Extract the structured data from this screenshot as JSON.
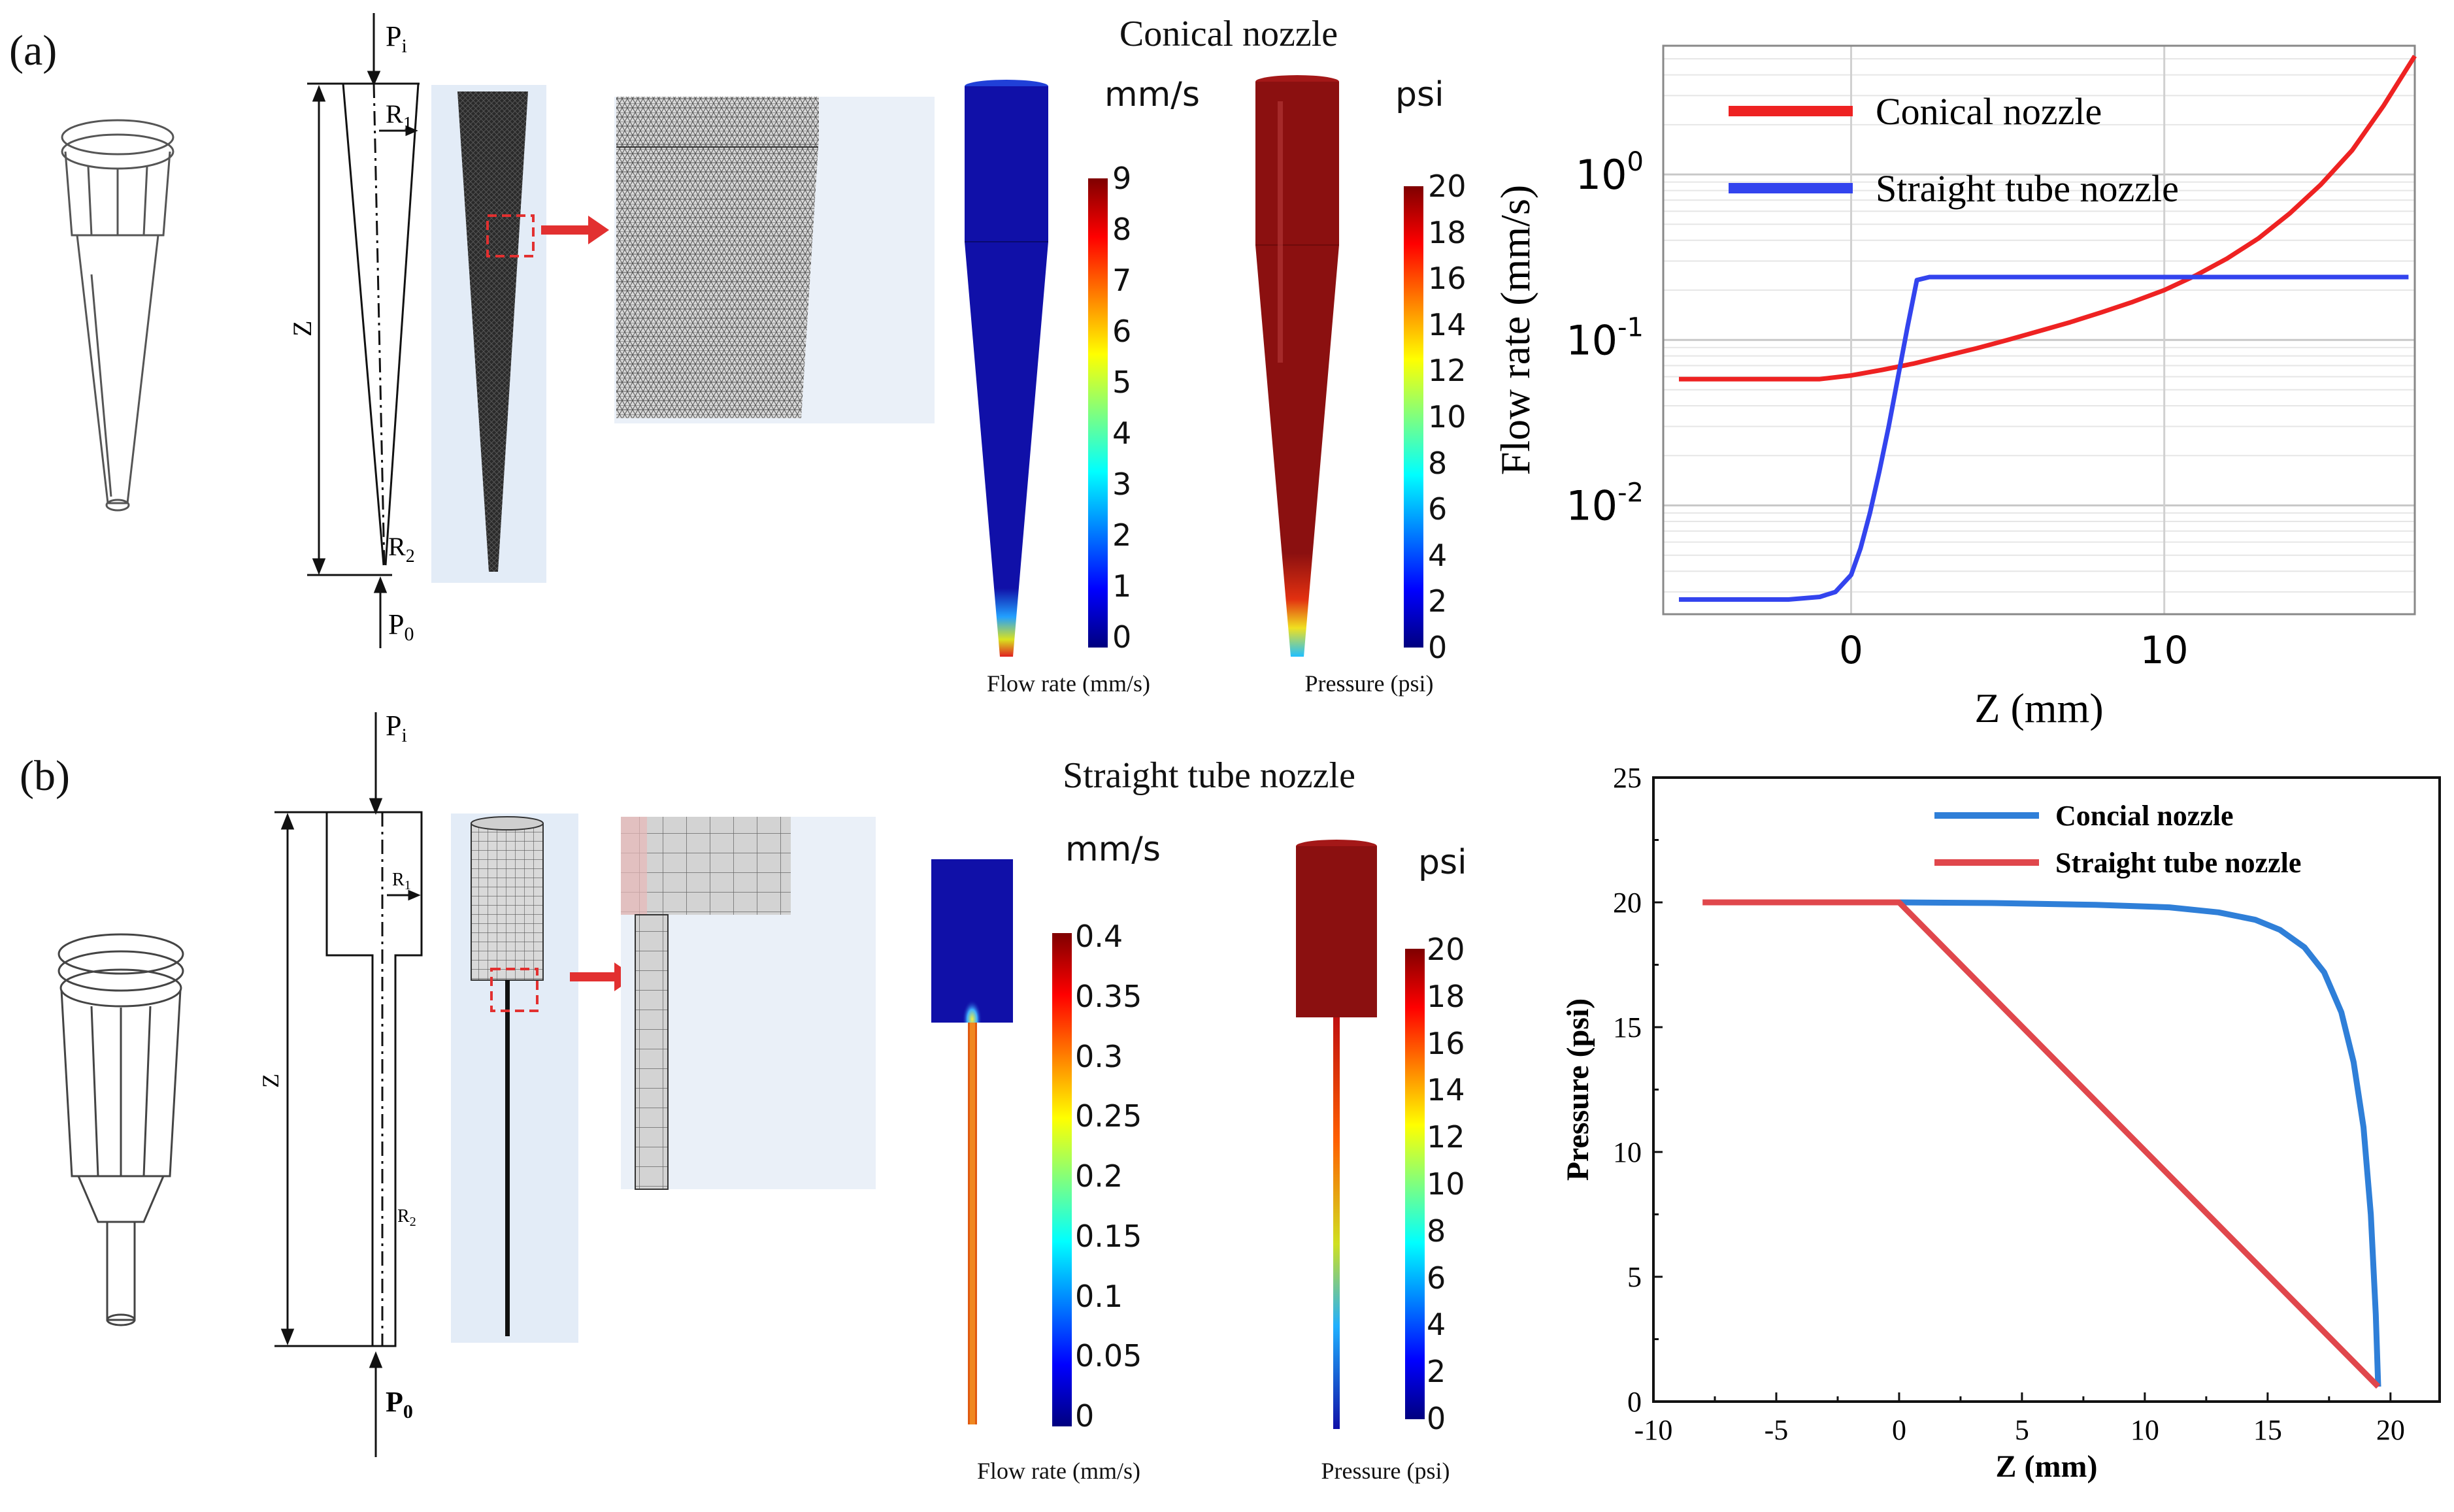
{
  "panel_a": {
    "label": "(a)",
    "title": "Conical nozzle",
    "schematic": {
      "inlet": "P",
      "inlet_sub": "i",
      "outlet": "P",
      "outlet_sub": "0",
      "r1": "R",
      "r1_sub": "1",
      "r2": "R",
      "r2_sub": "2",
      "z": "Z"
    },
    "flow_colorbar": {
      "unit": "mm/s",
      "ticks": [
        "9",
        "8",
        "7",
        "6",
        "5",
        "4",
        "3",
        "2",
        "1",
        "0"
      ],
      "caption": "Flow rate (mm/s)"
    },
    "pressure_colorbar": {
      "unit": "psi",
      "ticks": [
        "20",
        "18",
        "16",
        "14",
        "12",
        "10",
        "8",
        "6",
        "4",
        "2",
        "0"
      ],
      "caption": "Pressure (psi)"
    }
  },
  "panel_b": {
    "label": "(b)",
    "title": "Straight tube nozzle",
    "schematic": {
      "inlet": "P",
      "inlet_sub": "i",
      "outlet": "P",
      "outlet_sub": "0",
      "r1": "R",
      "r1_sub": "1",
      "r2": "R",
      "r2_sub": "2",
      "z": "Z"
    },
    "flow_colorbar": {
      "unit": "mm/s",
      "ticks": [
        "0.4",
        "0.35",
        "0.3",
        "0.25",
        "0.2",
        "0.15",
        "0.1",
        "0.05",
        "0"
      ],
      "caption": "Flow rate (mm/s)"
    },
    "pressure_colorbar": {
      "unit": "psi",
      "ticks": [
        "20",
        "18",
        "16",
        "14",
        "12",
        "10",
        "8",
        "6",
        "4",
        "2",
        "0"
      ],
      "caption": "Pressure (psi)"
    }
  },
  "colors": {
    "conical": "#ee2222",
    "straight": "#3344ee",
    "conical_b": "#2f7fd8",
    "straight_b": "#e0474c",
    "sim_blue": "#1010a8",
    "sim_red": "#8b1010"
  },
  "chart_data": [
    {
      "type": "line",
      "title": "",
      "xlabel": "Z (mm)",
      "ylabel": "Flow rate (mm/s)",
      "yscale": "log",
      "xlim": [
        -6,
        18
      ],
      "ylim": [
        0.0022,
        6
      ],
      "x_ticks": [
        0,
        10
      ],
      "x_tick_labels": [
        "0",
        "10"
      ],
      "y_ticks": [
        0.01,
        0.1,
        1
      ],
      "y_tick_labels": [
        [
          "10",
          "-2"
        ],
        [
          "10",
          "-1"
        ],
        [
          "10",
          "0"
        ]
      ],
      "grid": true,
      "legend": "top-left",
      "series": [
        {
          "name": "Conical nozzle",
          "color": "#ee2222",
          "x": [
            -5.5,
            -3,
            -1,
            0,
            1,
            2,
            3,
            4,
            5,
            6,
            7,
            8,
            9,
            10,
            11,
            12,
            13,
            14,
            15,
            16,
            17,
            18
          ],
          "y": [
            0.058,
            0.058,
            0.058,
            0.061,
            0.066,
            0.072,
            0.08,
            0.089,
            0.1,
            0.113,
            0.128,
            0.147,
            0.17,
            0.2,
            0.245,
            0.31,
            0.41,
            0.58,
            0.87,
            1.4,
            2.6,
            5.2
          ]
        },
        {
          "name": "Straight tube nozzle",
          "color": "#3344ee",
          "x": [
            -5.5,
            -2,
            -1,
            -0.5,
            0,
            0.3,
            0.6,
            0.9,
            1.2,
            1.5,
            1.8,
            2.1,
            2.5,
            5,
            10,
            15,
            17.8
          ],
          "y": [
            0.0027,
            0.0027,
            0.0028,
            0.003,
            0.0038,
            0.0055,
            0.009,
            0.016,
            0.03,
            0.06,
            0.12,
            0.23,
            0.24,
            0.24,
            0.24,
            0.24,
            0.24
          ]
        }
      ]
    },
    {
      "type": "line",
      "title": "",
      "xlabel": "Z (mm)",
      "ylabel": "Pressure (psi)",
      "xlim": [
        -10,
        22
      ],
      "ylim": [
        0,
        25
      ],
      "x_ticks": [
        -10,
        -5,
        0,
        5,
        10,
        15,
        20
      ],
      "x_tick_labels": [
        "-10",
        "-5",
        "0",
        "5",
        "10",
        "15",
        "20"
      ],
      "y_ticks": [
        0,
        5,
        10,
        15,
        20,
        25
      ],
      "y_tick_labels": [
        "0",
        "5",
        "10",
        "15",
        "20",
        "25"
      ],
      "grid": false,
      "legend": "top-right",
      "series": [
        {
          "name": "Concial nozzle",
          "color": "#2f7fd8",
          "x": [
            0,
            4,
            8,
            11,
            13,
            14.5,
            15.5,
            16.5,
            17.3,
            18,
            18.5,
            18.9,
            19.2,
            19.4,
            19.5
          ],
          "y": [
            20,
            19.97,
            19.9,
            19.8,
            19.6,
            19.3,
            18.9,
            18.2,
            17.2,
            15.6,
            13.6,
            11,
            7.5,
            3.5,
            0.6
          ]
        },
        {
          "name": "Straight tube nozzle",
          "color": "#e0474c",
          "x": [
            -8,
            0,
            19.5
          ],
          "y": [
            20,
            20,
            0.6
          ]
        }
      ]
    }
  ]
}
